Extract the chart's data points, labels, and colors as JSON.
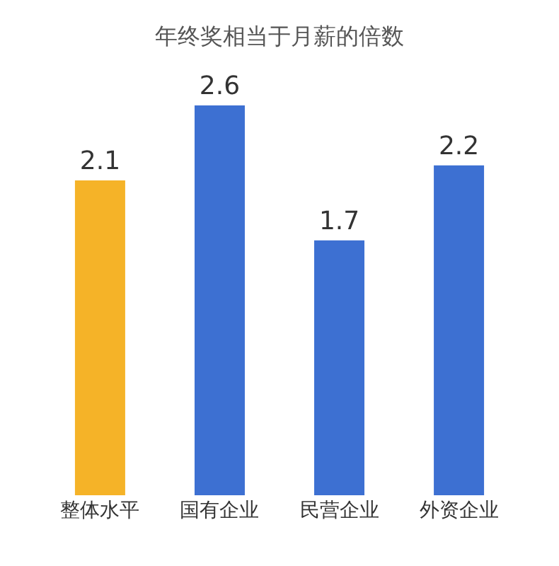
{
  "chart_data": {
    "type": "bar",
    "title": "年终奖相当于月薪的倍数",
    "categories": [
      "整体水平",
      "国有企业",
      "民营企业",
      "外资企业"
    ],
    "values": [
      2.1,
      2.6,
      1.7,
      2.2
    ],
    "colors": [
      "#f5b328",
      "#3d70d2",
      "#3d70d2",
      "#3d70d2"
    ],
    "data_labels": true
  }
}
